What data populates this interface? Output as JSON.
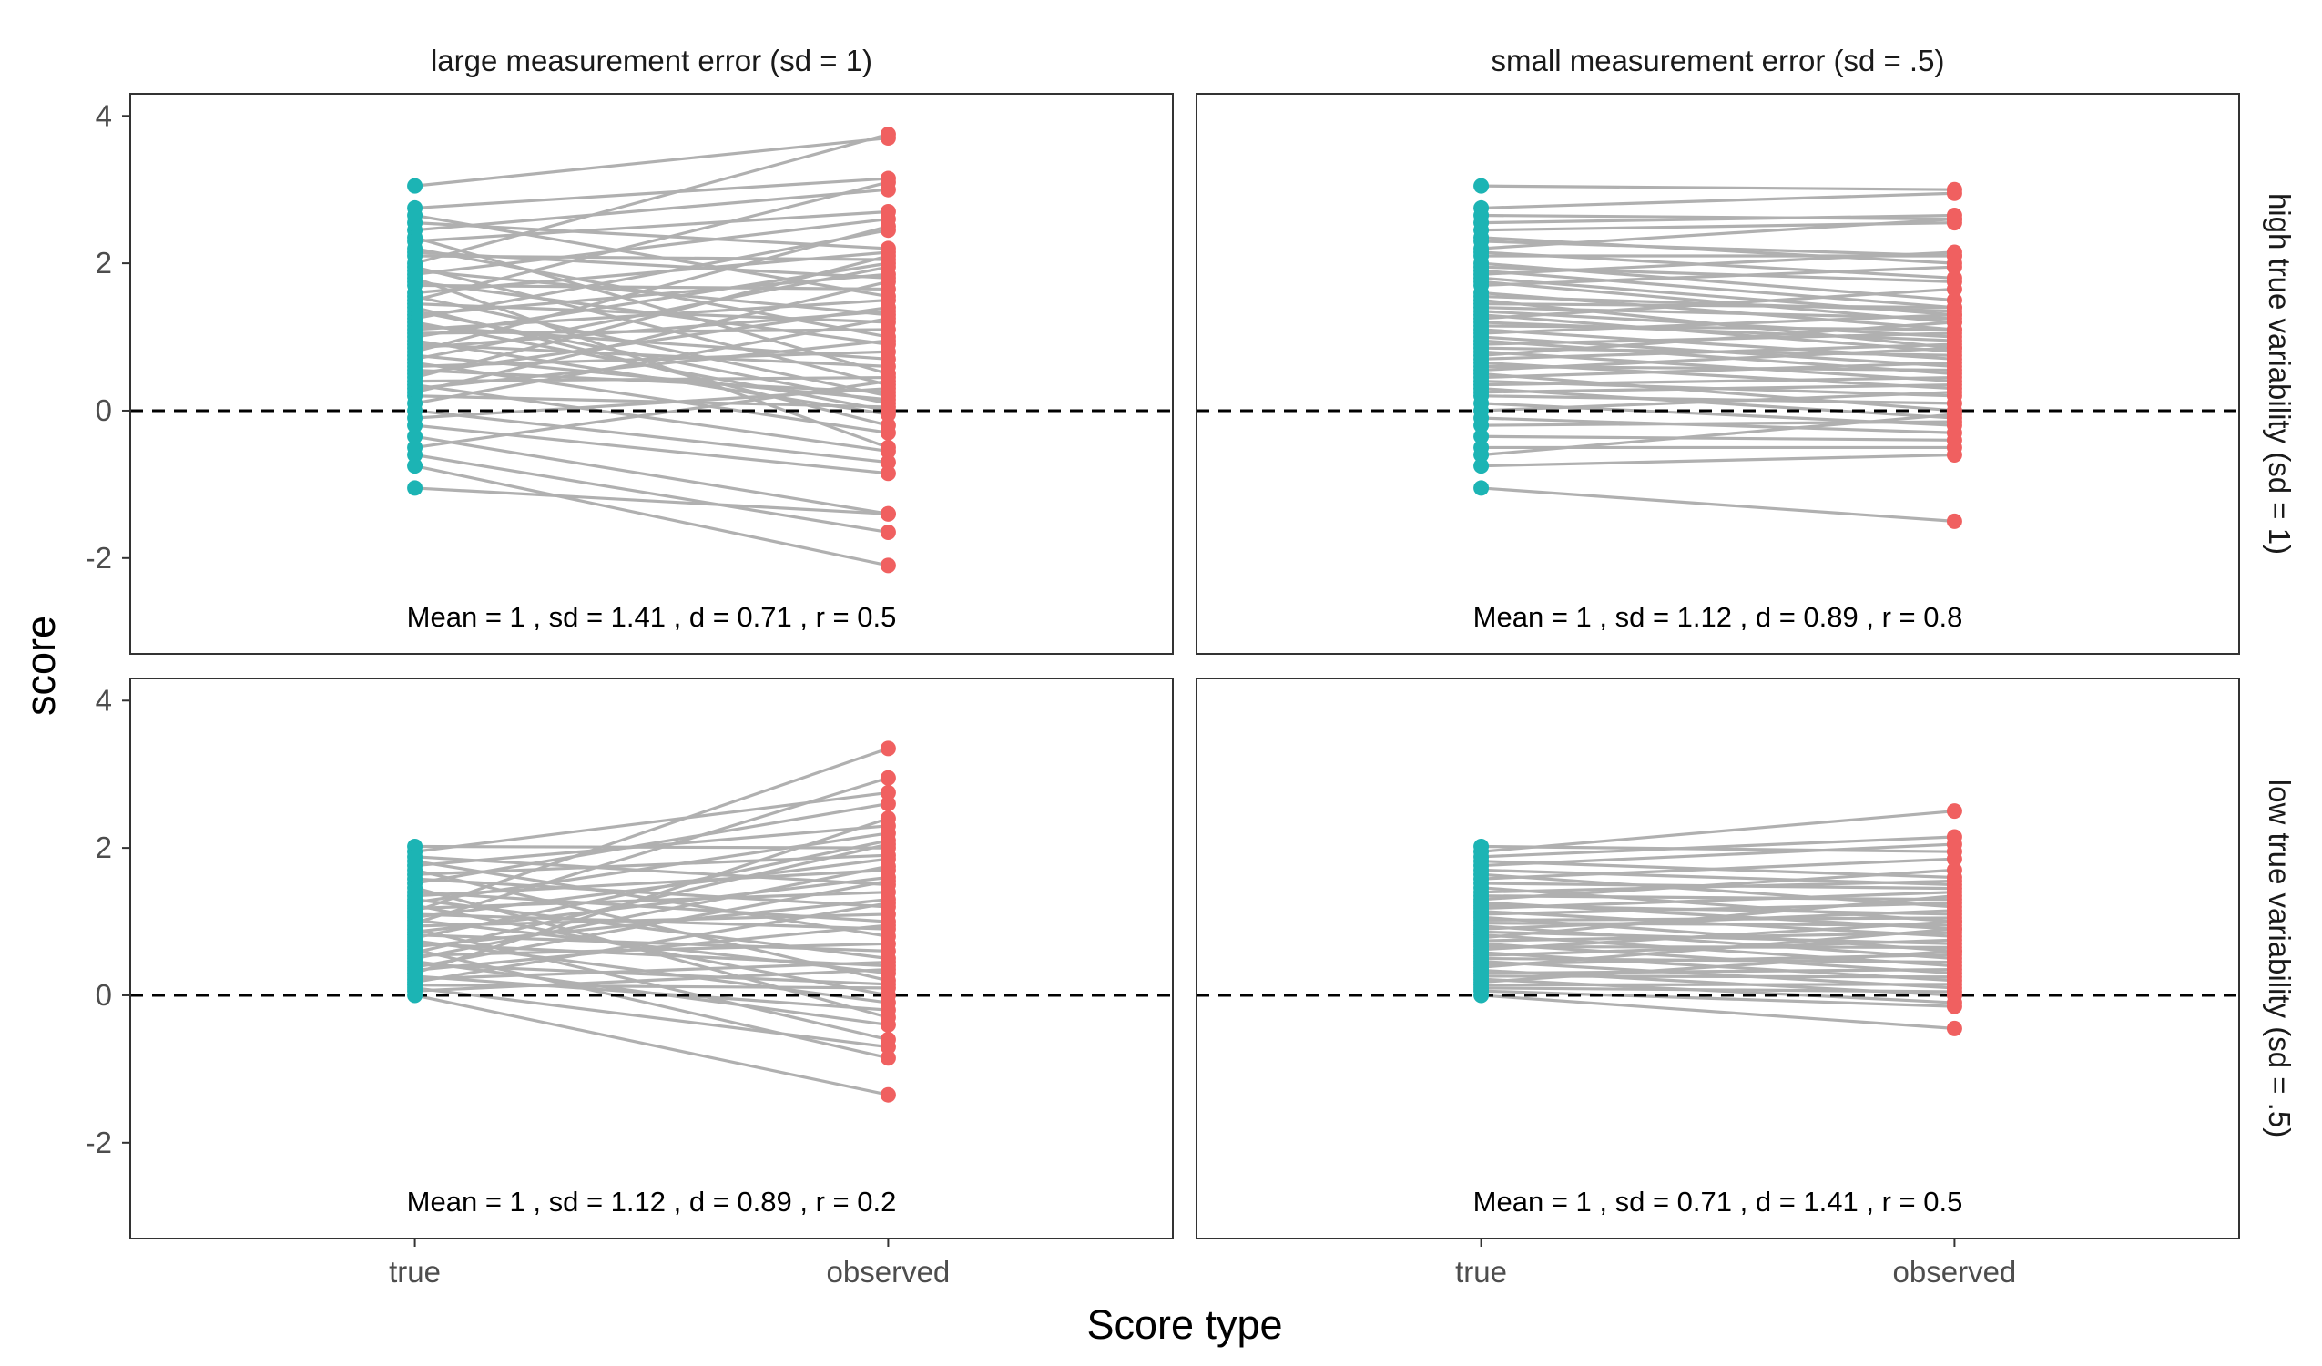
{
  "chart_data": {
    "type": "line",
    "xlabel": "Score type",
    "ylabel": "score",
    "x_categories": [
      "true",
      "observed"
    ],
    "ylim": [
      -3.3,
      4.3
    ],
    "yticks": [
      -2,
      0,
      2,
      4
    ],
    "reference_line": {
      "y": 0,
      "style": "dashed"
    },
    "colors": {
      "true": "#1CB4B4",
      "observed": "#F06060",
      "line": "#B0B0B0",
      "reference": "#000000"
    },
    "column_labels": [
      "large measurement error (sd = 1)",
      "small measurement error (sd = .5)"
    ],
    "row_labels": [
      "high true variability (sd = 1)",
      "low true variability (sd = .5)"
    ],
    "panels": [
      {
        "row": 0,
        "col": 0,
        "annotation": "Mean =  1 , sd =  1.41 , d =  0.71 , r =  0.5",
        "true": [
          3.05,
          2.75,
          2.65,
          2.55,
          2.45,
          2.35,
          2.3,
          2.2,
          2.15,
          2.1,
          2.0,
          1.95,
          1.9,
          1.85,
          1.8,
          1.75,
          1.7,
          1.6,
          1.55,
          1.5,
          1.45,
          1.4,
          1.35,
          1.3,
          1.25,
          1.2,
          1.15,
          1.1,
          1.05,
          1.0,
          0.95,
          0.9,
          0.85,
          0.8,
          0.75,
          0.7,
          0.65,
          0.6,
          0.55,
          0.5,
          0.45,
          0.4,
          0.35,
          0.3,
          0.25,
          0.2,
          0.1,
          0.0,
          -0.1,
          -0.2,
          -0.35,
          -0.5,
          -0.6,
          -0.75,
          -1.05
        ],
        "observed": [
          3.7,
          3.15,
          1.55,
          2.2,
          3.0,
          0.5,
          2.7,
          1.0,
          1.8,
          2.05,
          3.75,
          0.35,
          1.3,
          2.6,
          -0.5,
          0.9,
          1.65,
          2.15,
          0.2,
          3.1,
          1.2,
          -0.2,
          0.1,
          1.85,
          2.45,
          0.0,
          0.7,
          1.5,
          1.1,
          2.0,
          -0.05,
          0.6,
          1.35,
          2.5,
          0.15,
          1.95,
          -0.3,
          0.8,
          0.25,
          1.4,
          2.1,
          0.45,
          -0.55,
          0.95,
          1.75,
          0.05,
          1.25,
          -0.7,
          0.3,
          -0.85,
          -1.4,
          0.4,
          -1.65,
          -2.1,
          -1.4
        ]
      },
      {
        "row": 0,
        "col": 1,
        "annotation": "Mean =  1 , sd =  1.12 , d =  0.89 , r =  0.8",
        "true": [
          3.05,
          2.75,
          2.65,
          2.55,
          2.45,
          2.35,
          2.3,
          2.2,
          2.15,
          2.1,
          2.0,
          1.95,
          1.9,
          1.85,
          1.8,
          1.75,
          1.7,
          1.6,
          1.55,
          1.5,
          1.45,
          1.4,
          1.35,
          1.3,
          1.25,
          1.2,
          1.15,
          1.1,
          1.05,
          1.0,
          0.95,
          0.9,
          0.85,
          0.8,
          0.75,
          0.7,
          0.65,
          0.6,
          0.55,
          0.5,
          0.45,
          0.4,
          0.35,
          0.3,
          0.25,
          0.2,
          0.1,
          0.0,
          -0.1,
          -0.2,
          -0.35,
          -0.5,
          -0.6,
          -0.75,
          -1.05
        ],
        "observed": [
          3.0,
          2.95,
          2.6,
          2.65,
          2.55,
          2.0,
          2.1,
          2.6,
          1.8,
          2.1,
          1.5,
          1.75,
          1.4,
          2.15,
          1.3,
          1.2,
          1.95,
          1.1,
          1.35,
          0.85,
          1.4,
          1.25,
          1.0,
          0.8,
          1.65,
          0.95,
          1.1,
          0.7,
          1.3,
          0.6,
          0.5,
          1.05,
          0.75,
          0.4,
          1.2,
          0.9,
          0.3,
          0.55,
          0.85,
          0.0,
          0.65,
          0.2,
          0.45,
          -0.1,
          0.35,
          0.1,
          -0.2,
          0.25,
          -0.3,
          -0.15,
          -0.4,
          -0.5,
          -0.05,
          -0.6,
          -1.5
        ]
      },
      {
        "row": 1,
        "col": 0,
        "annotation": "Mean =  1 , sd =  1.12 , d =  0.89 , r =  0.2",
        "true": [
          2.02,
          1.95,
          1.88,
          1.82,
          1.76,
          1.7,
          1.64,
          1.58,
          1.52,
          1.46,
          1.4,
          1.35,
          1.3,
          1.26,
          1.22,
          1.18,
          1.14,
          1.1,
          1.06,
          1.02,
          0.98,
          0.94,
          0.9,
          0.86,
          0.82,
          0.78,
          0.74,
          0.7,
          0.66,
          0.62,
          0.58,
          0.54,
          0.5,
          0.46,
          0.42,
          0.38,
          0.34,
          0.3,
          0.26,
          0.22,
          0.18,
          0.14,
          0.1,
          0.06,
          0.0
        ],
        "observed": [
          2.0,
          2.75,
          1.5,
          0.8,
          2.3,
          0.2,
          1.9,
          1.2,
          2.6,
          -0.3,
          1.0,
          1.7,
          0.5,
          2.2,
          0.0,
          1.4,
          3.35,
          0.9,
          1.85,
          0.3,
          2.95,
          1.1,
          -0.6,
          1.6,
          0.6,
          2.1,
          -0.1,
          0.4,
          1.3,
          -0.85,
          2.05,
          0.7,
          1.75,
          -0.4,
          0.15,
          1.55,
          0.95,
          2.4,
          -0.2,
          0.45,
          1.25,
          0.1,
          -0.7,
          0.35,
          -1.35
        ]
      },
      {
        "row": 1,
        "col": 1,
        "annotation": "Mean =  1 , sd =  0.71 , d =  1.41 , r =  0.5",
        "true": [
          2.02,
          1.95,
          1.88,
          1.82,
          1.76,
          1.7,
          1.64,
          1.58,
          1.52,
          1.46,
          1.4,
          1.35,
          1.3,
          1.26,
          1.22,
          1.18,
          1.14,
          1.1,
          1.06,
          1.02,
          0.98,
          0.94,
          0.9,
          0.86,
          0.82,
          0.78,
          0.74,
          0.7,
          0.66,
          0.62,
          0.58,
          0.54,
          0.5,
          0.46,
          0.42,
          0.38,
          0.34,
          0.3,
          0.26,
          0.22,
          0.18,
          0.14,
          0.1,
          0.06,
          0.0
        ],
        "observed": [
          1.95,
          2.5,
          2.15,
          1.6,
          2.05,
          1.5,
          1.2,
          1.85,
          1.45,
          1.0,
          1.55,
          1.3,
          1.7,
          0.9,
          1.1,
          1.4,
          0.8,
          1.25,
          0.6,
          1.05,
          0.95,
          0.5,
          1.15,
          0.7,
          0.4,
          1.35,
          0.85,
          0.3,
          0.65,
          1.0,
          0.2,
          0.75,
          0.45,
          0.1,
          0.55,
          0.9,
          0.0,
          0.35,
          0.25,
          -0.1,
          0.6,
          0.15,
          0.05,
          -0.15,
          -0.45
        ]
      }
    ]
  }
}
